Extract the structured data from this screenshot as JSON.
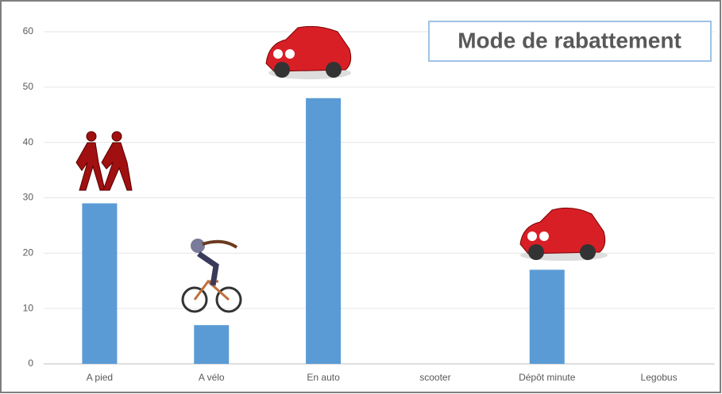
{
  "chart_data": {
    "type": "bar",
    "title": "Mode de rabattement",
    "categories": [
      "A pied",
      "A vélo",
      "En auto",
      "scooter",
      "Dépôt minute",
      "Legobus"
    ],
    "values": [
      29,
      7,
      48,
      0,
      17,
      0
    ],
    "color": "#5b9bd5",
    "ylim": [
      0,
      60
    ],
    "yticks": [
      0,
      10,
      20,
      30,
      40,
      50,
      60
    ],
    "grid": true
  }
}
